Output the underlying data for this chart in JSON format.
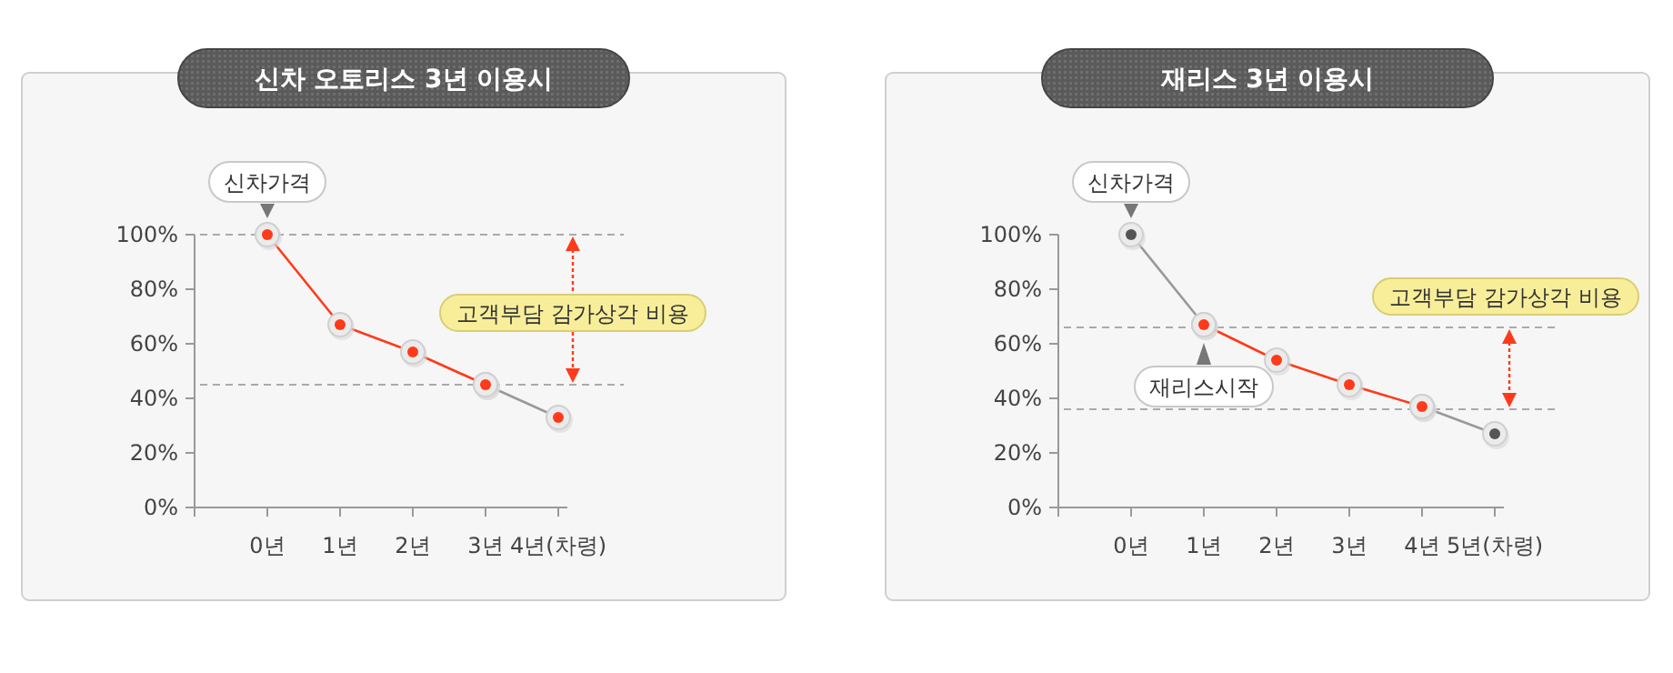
{
  "chart_data": [
    {
      "type": "line",
      "title": "신차 오토리스 3년 이용시",
      "categories": [
        "0년",
        "1년",
        "2년",
        "3년",
        "4년(차령)"
      ],
      "ylim": [
        0,
        100
      ],
      "yticks": [
        {
          "value": 0,
          "label": "0%"
        },
        {
          "value": 20,
          "label": "20%"
        },
        {
          "value": 40,
          "label": "40%"
        },
        {
          "value": 60,
          "label": "60%"
        },
        {
          "value": 80,
          "label": "80%"
        },
        {
          "value": 100,
          "label": "100%"
        }
      ],
      "series": [
        {
          "color": "#999999",
          "colors": [
            null,
            null,
            null,
            "#ff3a1a",
            "#ff3a1a"
          ],
          "values": [
            null,
            null,
            null,
            45,
            33
          ]
        },
        {
          "color": "#ff3a1a",
          "values": [
            100,
            67,
            57,
            45,
            null
          ]
        }
      ],
      "marker": "circle",
      "grid": false,
      "ref_lines": [
        {
          "axis": "y",
          "value": 100
        },
        {
          "axis": "y",
          "value": 45
        }
      ],
      "annotations": [
        {
          "text": "신차가격",
          "x": "0년",
          "y": 100
        },
        "고객부담 감가상각 비용"
      ]
    },
    {
      "type": "line",
      "title": "재리스 3년 이용시",
      "categories": [
        "0년",
        "1년",
        "2년",
        "3년",
        "4년",
        "5년(차령)"
      ],
      "ylim": [
        0,
        100
      ],
      "yticks": [
        {
          "value": 0,
          "label": "0%"
        },
        {
          "value": 20,
          "label": "20%"
        },
        {
          "value": 40,
          "label": "40%"
        },
        {
          "value": 60,
          "label": "60%"
        },
        {
          "value": 80,
          "label": "80%"
        },
        {
          "value": 100,
          "label": "100%"
        }
      ],
      "series": [
        {
          "color": "#999999",
          "colors": [
            "#555555",
            "#ff3a1a",
            null,
            null,
            "#ff3a1a",
            "#555555"
          ],
          "values": [
            100,
            67,
            null,
            null,
            37,
            27
          ]
        },
        {
          "color": "#ff3a1a",
          "values": [
            null,
            67,
            54,
            45,
            37,
            null
          ]
        }
      ],
      "marker": "circle",
      "grid": false,
      "ref_lines": [
        {
          "axis": "y",
          "value": 66
        },
        {
          "axis": "y",
          "value": 36
        }
      ],
      "annotations": [
        {
          "text": "신차가격",
          "x": "0년",
          "y": 100
        },
        {
          "text": "재리스시작",
          "x": "1년",
          "y": 67
        },
        "고객부담 감가상각 비용"
      ]
    }
  ]
}
